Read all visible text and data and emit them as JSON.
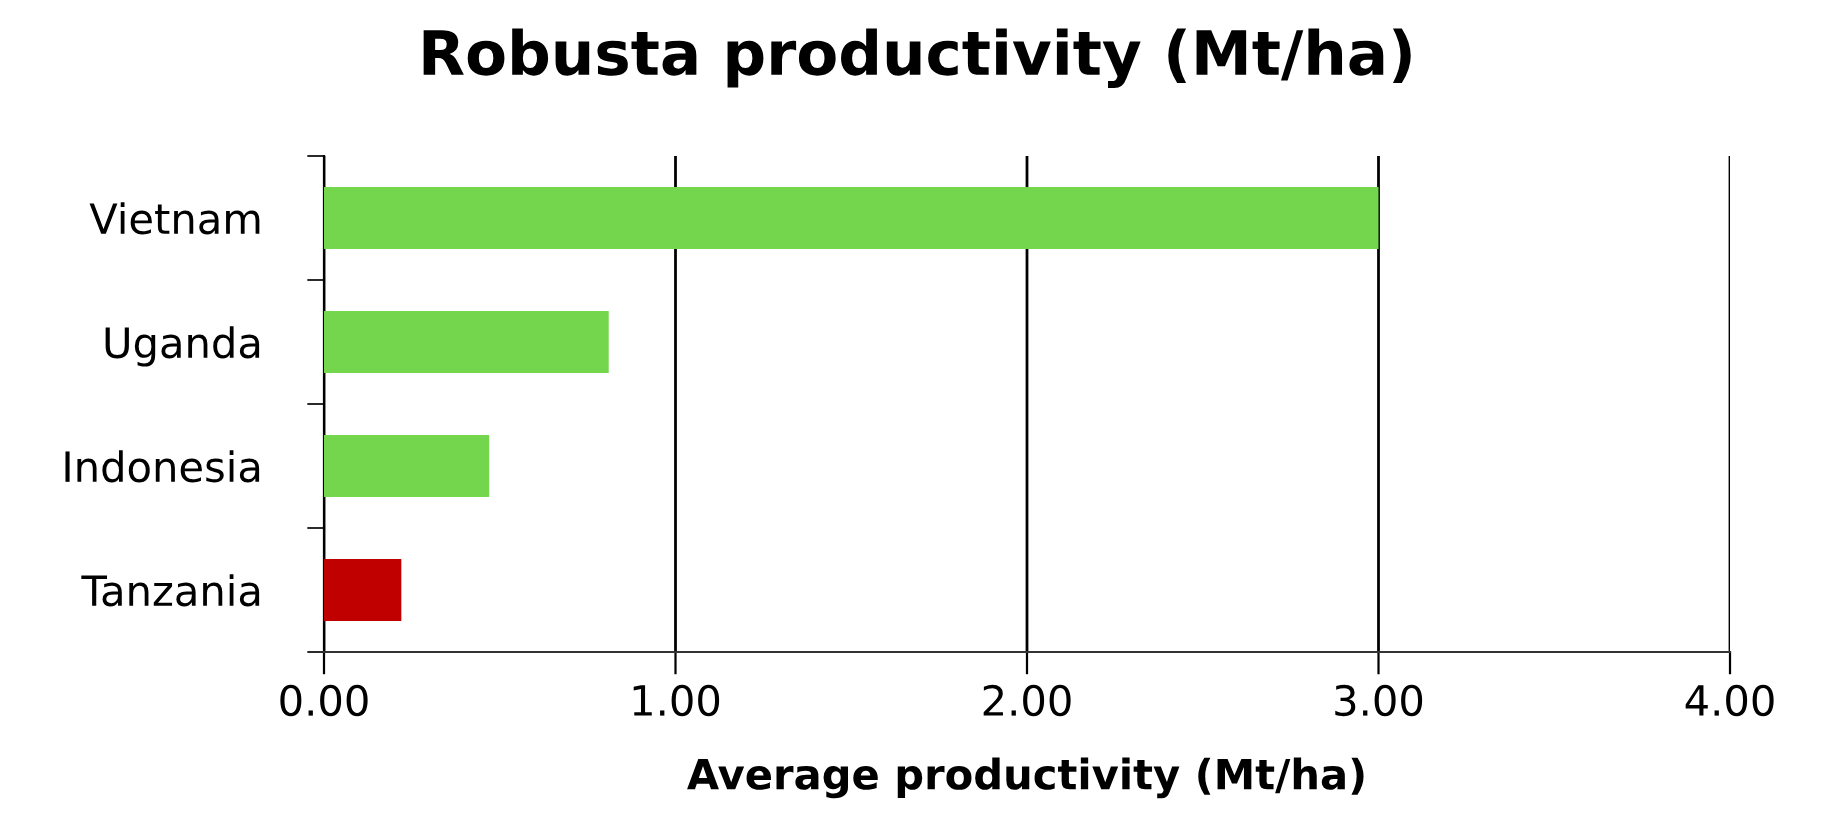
{
  "chart_data": {
    "type": "bar",
    "orientation": "horizontal",
    "title": "Robusta productivity (Mt/ha)",
    "xlabel": "Average productivity (Mt/ha)",
    "categories": [
      "Vietnam",
      "Uganda",
      "Indonesia",
      "Tanzania"
    ],
    "values": [
      3.0,
      0.81,
      0.47,
      0.22
    ],
    "colors": [
      "#74d64c",
      "#74d64c",
      "#74d64c",
      "#c00000"
    ],
    "xlim": [
      0,
      4
    ],
    "xticks": [
      {
        "value": 0,
        "label": "0.00"
      },
      {
        "value": 1,
        "label": "1.00"
      },
      {
        "value": 2,
        "label": "2.00"
      },
      {
        "value": 3,
        "label": "3.00"
      },
      {
        "value": 4,
        "label": "4.00"
      }
    ],
    "grid": "x"
  }
}
